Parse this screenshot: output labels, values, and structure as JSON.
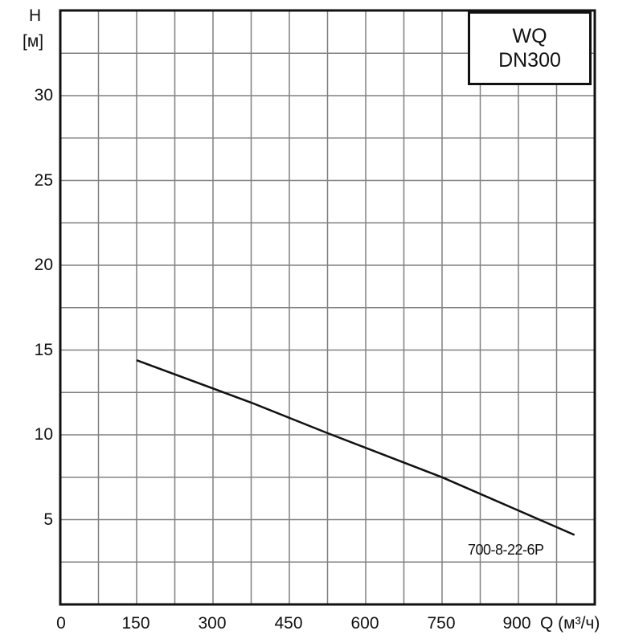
{
  "chart_data": {
    "type": "line",
    "title": "WQ DN300",
    "title_lines": [
      "WQ",
      "DN300"
    ],
    "xlabel": "Q (м³/ч)",
    "ylabel": "H [м]",
    "ylabel_lines": [
      "H",
      "[м]"
    ],
    "xlim": [
      0,
      1050
    ],
    "ylim": [
      0,
      35
    ],
    "x_ticks": [
      0,
      150,
      300,
      450,
      600,
      750,
      900
    ],
    "y_ticks": [
      5,
      10,
      15,
      20,
      25,
      30
    ],
    "x_grid_step": 75,
    "y_grid_step": 2.5,
    "grid": true,
    "legend_position": "top-right",
    "series": [
      {
        "name": "700-8-22-6P",
        "x": [
          150,
          375,
          525,
          750,
          1010
        ],
        "y": [
          14.4,
          11.9,
          10.1,
          7.5,
          4.1
        ]
      }
    ]
  },
  "labels": {
    "y_axis_h": "H",
    "y_axis_unit": "[м]",
    "x_axis_title": "Q (м³/ч)",
    "legend_line1": "WQ",
    "legend_line2": "DN300",
    "curve_label": "700-8-22-6P",
    "y_ticks": [
      "30",
      "25",
      "20",
      "15",
      "10",
      "5"
    ],
    "x_ticks": [
      "0",
      "150",
      "300",
      "450",
      "600",
      "750",
      "900"
    ]
  },
  "colors": {
    "frame": "#111111",
    "grid": "#808080",
    "curve": "#111111",
    "background": "#ffffff"
  }
}
